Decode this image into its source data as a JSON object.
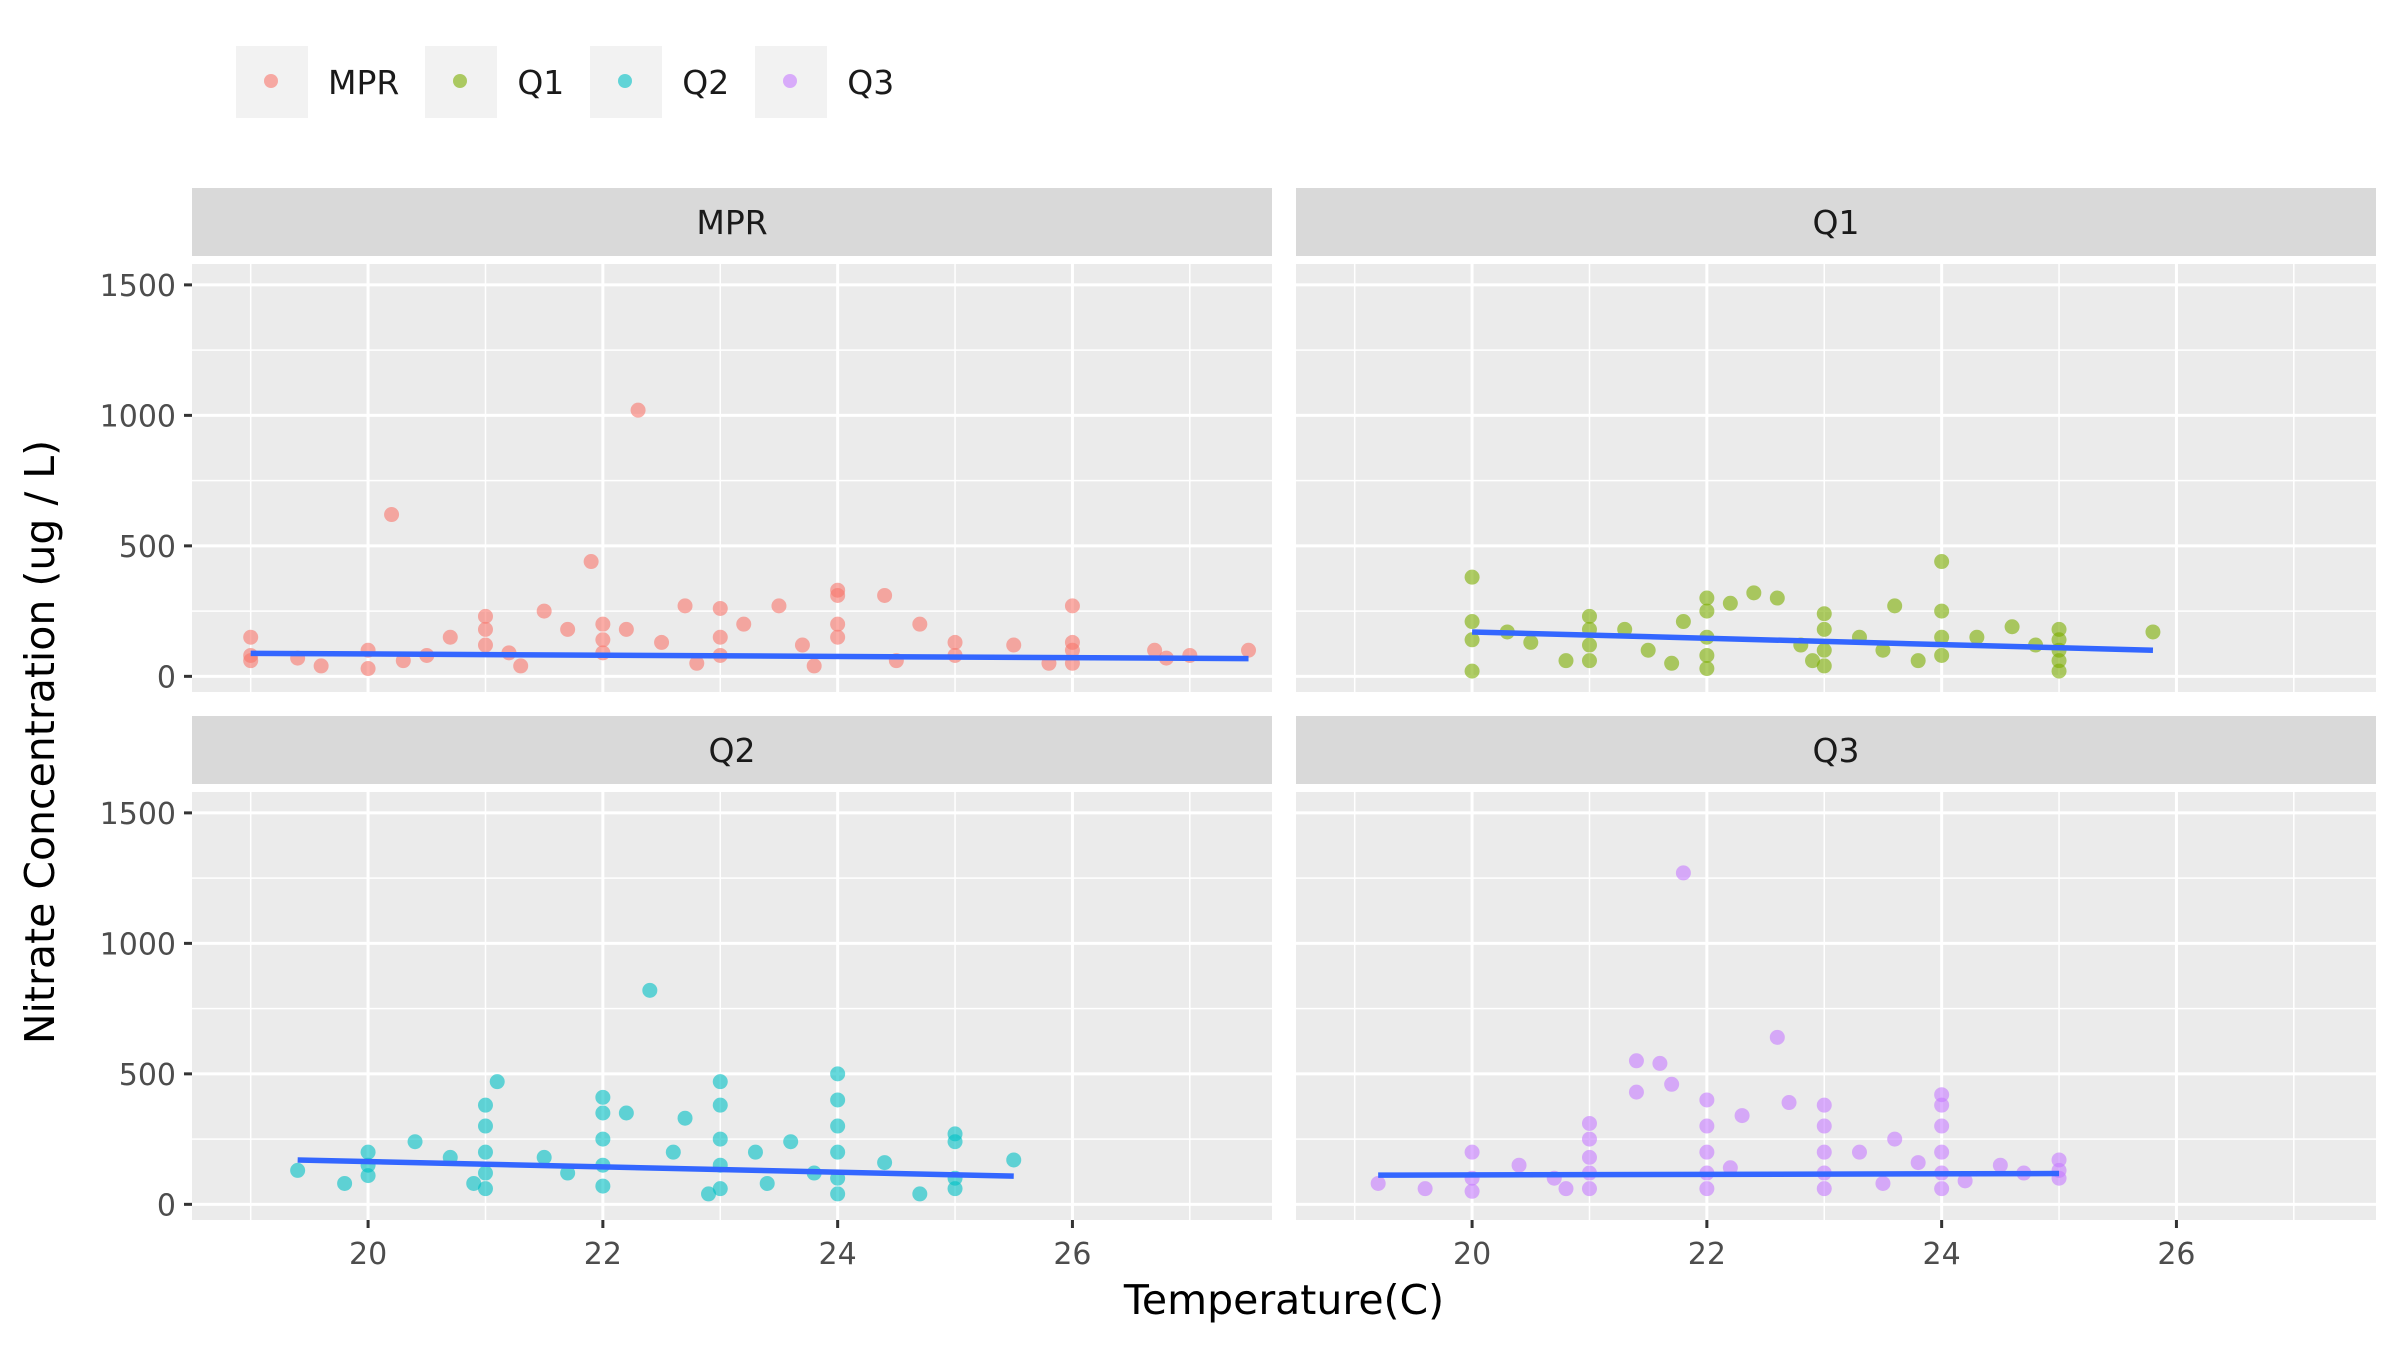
{
  "chart_data": {
    "type": "scatter",
    "xlabel": "Temperature(C)",
    "ylabel": "Nitrate Concentration (ug / L)",
    "xlim": [
      18.5,
      27.7
    ],
    "ylim": [
      -60,
      1580
    ],
    "x_ticks": [
      20,
      22,
      24,
      26
    ],
    "y_ticks": [
      0,
      500,
      1000,
      1500
    ],
    "grid": true,
    "legend_position": "top-left",
    "trend_color": "#3366ff",
    "series": [
      {
        "name": "MPR",
        "color": "#f8766d",
        "trend": [
          [
            19.0,
            88
          ],
          [
            27.5,
            68
          ]
        ],
        "points": [
          [
            19,
            150
          ],
          [
            19,
            60
          ],
          [
            19,
            80
          ],
          [
            19.4,
            70
          ],
          [
            19.6,
            40
          ],
          [
            20,
            100
          ],
          [
            20,
            30
          ],
          [
            20.2,
            620
          ],
          [
            20.5,
            80
          ],
          [
            20.7,
            150
          ],
          [
            21,
            230
          ],
          [
            21,
            180
          ],
          [
            21,
            120
          ],
          [
            21.2,
            90
          ],
          [
            21.5,
            250
          ],
          [
            21.7,
            180
          ],
          [
            21.9,
            440
          ],
          [
            22,
            200
          ],
          [
            22,
            140
          ],
          [
            22,
            90
          ],
          [
            22.2,
            180
          ],
          [
            22.3,
            1020
          ],
          [
            22.5,
            130
          ],
          [
            22.7,
            270
          ],
          [
            23,
            260
          ],
          [
            23,
            150
          ],
          [
            23,
            80
          ],
          [
            23.2,
            200
          ],
          [
            23.5,
            270
          ],
          [
            23.7,
            120
          ],
          [
            24,
            330
          ],
          [
            24,
            310
          ],
          [
            24,
            200
          ],
          [
            24,
            150
          ],
          [
            24.4,
            310
          ],
          [
            24.7,
            200
          ],
          [
            25,
            130
          ],
          [
            25,
            80
          ],
          [
            25.5,
            120
          ],
          [
            26,
            270
          ],
          [
            26,
            130
          ],
          [
            26,
            100
          ],
          [
            26,
            50
          ],
          [
            26.7,
            100
          ],
          [
            26.8,
            70
          ],
          [
            27,
            80
          ],
          [
            27.5,
            100
          ],
          [
            20.3,
            60
          ],
          [
            21.3,
            40
          ],
          [
            22.8,
            50
          ],
          [
            23.8,
            40
          ],
          [
            24.5,
            60
          ],
          [
            25.8,
            50
          ]
        ]
      },
      {
        "name": "Q1",
        "color": "#7cae00",
        "trend": [
          [
            20.0,
            170
          ],
          [
            25.8,
            100
          ]
        ],
        "points": [
          [
            20,
            380
          ],
          [
            20,
            210
          ],
          [
            20,
            140
          ],
          [
            20,
            20
          ],
          [
            20.3,
            170
          ],
          [
            20.5,
            130
          ],
          [
            20.8,
            60
          ],
          [
            21,
            230
          ],
          [
            21,
            180
          ],
          [
            21,
            120
          ],
          [
            21,
            60
          ],
          [
            21.3,
            180
          ],
          [
            21.5,
            100
          ],
          [
            21.7,
            50
          ],
          [
            22,
            300
          ],
          [
            22,
            250
          ],
          [
            22,
            150
          ],
          [
            22,
            80
          ],
          [
            22,
            30
          ],
          [
            22.2,
            280
          ],
          [
            22.4,
            320
          ],
          [
            22.6,
            300
          ],
          [
            22.8,
            120
          ],
          [
            23,
            240
          ],
          [
            23,
            180
          ],
          [
            23,
            100
          ],
          [
            23,
            40
          ],
          [
            23.3,
            150
          ],
          [
            23.5,
            100
          ],
          [
            23.6,
            270
          ],
          [
            23.8,
            60
          ],
          [
            24,
            440
          ],
          [
            24,
            250
          ],
          [
            24,
            150
          ],
          [
            24,
            80
          ],
          [
            24.3,
            150
          ],
          [
            24.6,
            190
          ],
          [
            25,
            180
          ],
          [
            25,
            140
          ],
          [
            25,
            100
          ],
          [
            25,
            60
          ],
          [
            25,
            20
          ],
          [
            25.8,
            170
          ],
          [
            21.8,
            210
          ],
          [
            22.9,
            60
          ],
          [
            24.8,
            120
          ]
        ]
      },
      {
        "name": "Q2",
        "color": "#00bfc4",
        "trend": [
          [
            19.4,
            170
          ],
          [
            25.5,
            108
          ]
        ],
        "points": [
          [
            19.4,
            130
          ],
          [
            19.8,
            80
          ],
          [
            20,
            200
          ],
          [
            20,
            150
          ],
          [
            20,
            110
          ],
          [
            20.4,
            240
          ],
          [
            20.7,
            180
          ],
          [
            21,
            380
          ],
          [
            21,
            300
          ],
          [
            21,
            200
          ],
          [
            21,
            120
          ],
          [
            21,
            60
          ],
          [
            21.1,
            470
          ],
          [
            21.5,
            180
          ],
          [
            21.7,
            120
          ],
          [
            22,
            410
          ],
          [
            22,
            350
          ],
          [
            22,
            250
          ],
          [
            22,
            150
          ],
          [
            22,
            70
          ],
          [
            22.2,
            350
          ],
          [
            22.4,
            820
          ],
          [
            22.6,
            200
          ],
          [
            22.7,
            330
          ],
          [
            23,
            470
          ],
          [
            23,
            380
          ],
          [
            23,
            250
          ],
          [
            23,
            150
          ],
          [
            23,
            60
          ],
          [
            23.3,
            200
          ],
          [
            23.6,
            240
          ],
          [
            23.8,
            120
          ],
          [
            24,
            500
          ],
          [
            24,
            400
          ],
          [
            24,
            300
          ],
          [
            24,
            200
          ],
          [
            24,
            100
          ],
          [
            24,
            40
          ],
          [
            24.4,
            160
          ],
          [
            24.7,
            40
          ],
          [
            25,
            270
          ],
          [
            25,
            240
          ],
          [
            25,
            100
          ],
          [
            25,
            60
          ],
          [
            25.5,
            170
          ],
          [
            20.9,
            80
          ],
          [
            22.9,
            40
          ],
          [
            23.4,
            80
          ]
        ]
      },
      {
        "name": "Q3",
        "color": "#c77cff",
        "trend": [
          [
            19.2,
            112
          ],
          [
            25.0,
            118
          ]
        ],
        "points": [
          [
            19.2,
            80
          ],
          [
            19.6,
            60
          ],
          [
            20,
            200
          ],
          [
            20,
            100
          ],
          [
            20,
            50
          ],
          [
            20.4,
            150
          ],
          [
            20.7,
            100
          ],
          [
            21,
            310
          ],
          [
            21,
            250
          ],
          [
            21,
            180
          ],
          [
            21,
            120
          ],
          [
            21,
            60
          ],
          [
            21.4,
            550
          ],
          [
            21.4,
            430
          ],
          [
            21.6,
            540
          ],
          [
            21.7,
            460
          ],
          [
            21.8,
            1270
          ],
          [
            22,
            400
          ],
          [
            22,
            300
          ],
          [
            22,
            200
          ],
          [
            22,
            120
          ],
          [
            22,
            60
          ],
          [
            22.3,
            340
          ],
          [
            22.6,
            640
          ],
          [
            22.7,
            390
          ],
          [
            23,
            380
          ],
          [
            23,
            300
          ],
          [
            23,
            200
          ],
          [
            23,
            120
          ],
          [
            23,
            60
          ],
          [
            23.3,
            200
          ],
          [
            23.6,
            250
          ],
          [
            23.8,
            160
          ],
          [
            24,
            420
          ],
          [
            24,
            380
          ],
          [
            24,
            300
          ],
          [
            24,
            200
          ],
          [
            24,
            120
          ],
          [
            24,
            60
          ],
          [
            24.5,
            150
          ],
          [
            24.7,
            120
          ],
          [
            25,
            170
          ],
          [
            25,
            130
          ],
          [
            25,
            100
          ],
          [
            20.8,
            60
          ],
          [
            22.2,
            140
          ],
          [
            23.5,
            80
          ],
          [
            24.2,
            90
          ]
        ]
      }
    ]
  }
}
